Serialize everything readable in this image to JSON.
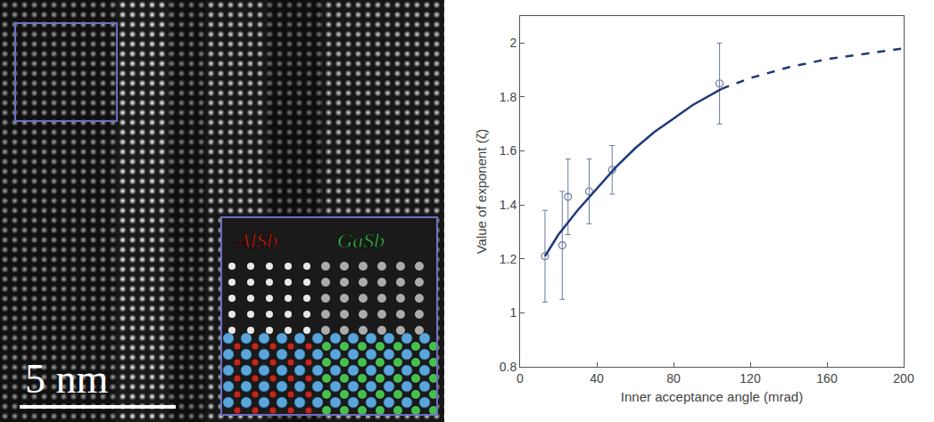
{
  "image": {
    "scale_bar": "5 nm",
    "inset_labels": [
      {
        "text": "AlSb",
        "color": "#c8231b"
      },
      {
        "text": "GaSb",
        "color": "#45c04f"
      }
    ]
  },
  "chart_data": {
    "type": "scatter",
    "x_label": "Inner acceptance angle (mrad)",
    "y_label": "Value of exponent (ζ)",
    "xlim": [
      0,
      200
    ],
    "xticks": [
      0,
      40,
      80,
      120,
      160,
      200
    ],
    "ylim": [
      0.8,
      2.1
    ],
    "yticks": [
      0.8,
      1,
      1.2,
      1.4,
      1.6,
      1.8,
      2
    ],
    "grid": false,
    "series": [
      {
        "type": "scatter",
        "marker": "open circle",
        "color": "#6a7aa0",
        "x": [
          13,
          22,
          25,
          36,
          48,
          104
        ],
        "values": [
          1.21,
          1.25,
          1.43,
          1.45,
          1.53,
          1.85
        ],
        "errors": [
          0.17,
          0.2,
          0.14,
          0.12,
          0.09,
          0.15
        ]
      },
      {
        "type": "line",
        "line_style": "solid",
        "color": "#1f3a78",
        "x": [
          13,
          20,
          30,
          40,
          50,
          60,
          70,
          80,
          90,
          105
        ],
        "values": [
          1.21,
          1.29,
          1.38,
          1.46,
          1.54,
          1.61,
          1.67,
          1.72,
          1.77,
          1.83
        ]
      },
      {
        "type": "line",
        "line_style": "dashed",
        "color": "#1f3a78",
        "x": [
          105,
          120,
          140,
          160,
          180,
          200
        ],
        "values": [
          1.83,
          1.87,
          1.91,
          1.94,
          1.96,
          1.98
        ]
      }
    ]
  }
}
